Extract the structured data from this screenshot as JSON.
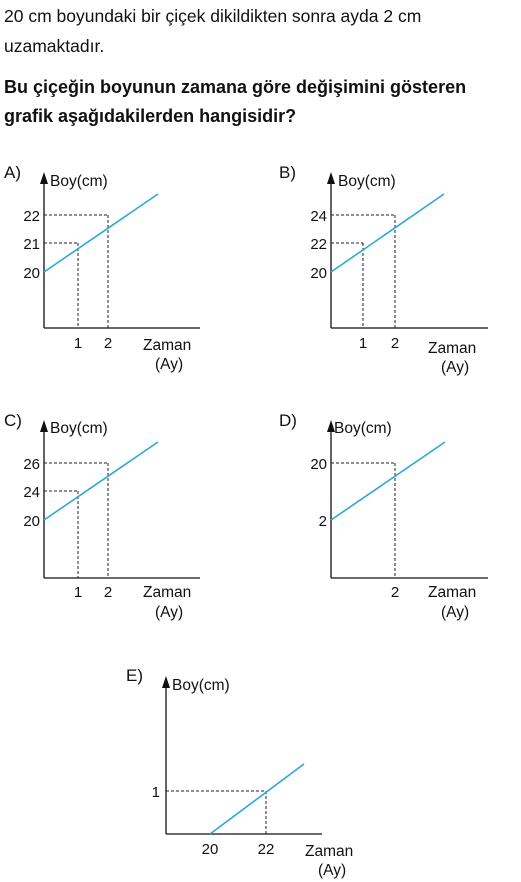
{
  "question": {
    "stem_line1": "20 cm boyundaki bir çiçek dikildikten sonra ayda 2 cm",
    "stem_line2": "uzamaktadır.",
    "prompt_line1": "Bu çiçeğin boyunun zamana göre değişimini gösteren",
    "prompt_line2": "grafik aşağıdakilerden hangisidir?"
  },
  "colors": {
    "line": "#2aa8d8",
    "axis": "#111111",
    "guide": "#222222"
  },
  "options": [
    {
      "id": "A",
      "label": "A)",
      "y_axis_label": "Boy(cm)",
      "x_axis_label_1": "Zaman",
      "x_axis_label_2": "(Ay)",
      "y_ticks": [
        "20",
        "21",
        "22"
      ],
      "x_ticks": [
        "1",
        "2"
      ],
      "points": [
        {
          "x": "1",
          "y": "21"
        },
        {
          "x": "2",
          "y": "22"
        }
      ]
    },
    {
      "id": "B",
      "label": "B)",
      "y_axis_label": "Boy(cm)",
      "x_axis_label_1": "Zaman",
      "x_axis_label_2": "(Ay)",
      "y_ticks": [
        "20",
        "22",
        "24"
      ],
      "x_ticks": [
        "1",
        "2"
      ],
      "points": [
        {
          "x": "1",
          "y": "22"
        },
        {
          "x": "2",
          "y": "24"
        }
      ]
    },
    {
      "id": "C",
      "label": "C)",
      "y_axis_label": "Boy(cm)",
      "x_axis_label_1": "Zaman",
      "x_axis_label_2": "(Ay)",
      "y_ticks": [
        "20",
        "24",
        "26"
      ],
      "x_ticks": [
        "1",
        "2"
      ],
      "points": [
        {
          "x": "1",
          "y": "24"
        },
        {
          "x": "2",
          "y": "26"
        }
      ]
    },
    {
      "id": "D",
      "label": "D)",
      "y_axis_label": "Boy(cm)",
      "x_axis_label_1": "Zaman",
      "x_axis_label_2": "(Ay)",
      "y_ticks": [
        "2",
        "20"
      ],
      "x_ticks": [
        "2"
      ],
      "points": [
        {
          "x": "2",
          "y": "20"
        }
      ]
    },
    {
      "id": "E",
      "label": "E)",
      "y_axis_label": "Boy(cm)",
      "x_axis_label_1": "Zaman",
      "x_axis_label_2": "(Ay)",
      "y_ticks": [
        "1"
      ],
      "x_ticks": [
        "20",
        "22"
      ],
      "points": [
        {
          "x": "22",
          "y": "1"
        }
      ]
    }
  ]
}
